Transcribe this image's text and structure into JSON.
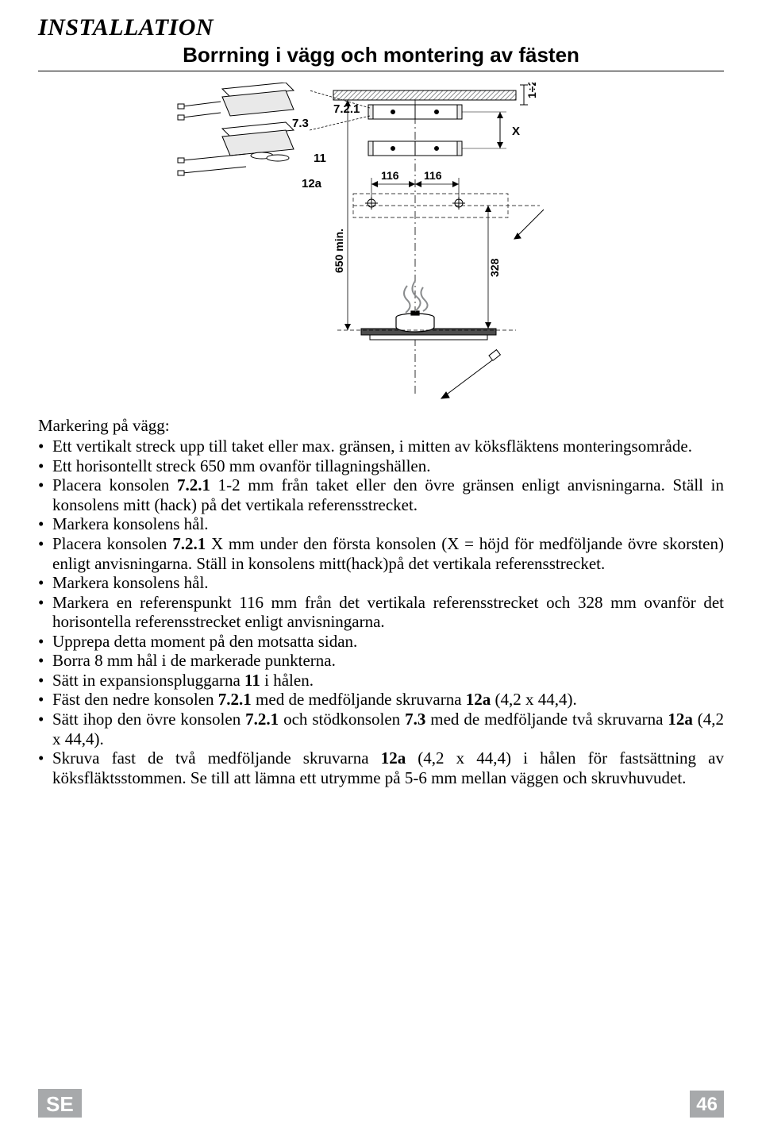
{
  "header": {
    "title": "INSTALLATION",
    "subtitle": "Borrning i vägg och montering av fästen"
  },
  "diagram": {
    "labels": {
      "l73": "7.3",
      "l721": "7.2.1",
      "l11": "11",
      "l12a": "12a",
      "l116a": "116",
      "l116b": "116",
      "topdim": "1÷2",
      "xdim": "X",
      "v328": "328",
      "v650": "650 min."
    },
    "colors": {
      "stroke": "#000000",
      "hatch": "#8a8c8e",
      "fill_light": "#e9e9e9",
      "dash": "#000000"
    }
  },
  "body": {
    "lead": "Markering på vägg:",
    "bullets": [
      "Ett vertikalt streck upp till taket eller max. gränsen, i mitten av köksfläktens monteringsområde.",
      "Ett horisontellt streck 650 mm ovanför tillagningshällen.",
      "Placera konsolen <b>7.2.1</b> 1-2 mm från taket eller den övre gränsen enligt anvisningarna. Ställ in konsolens mitt (hack) på det vertikala referensstrecket.",
      "Markera konsolens hål.",
      "Placera konsolen <b>7.2.1</b> X mm under den första konsolen (X = höjd för medföljande övre skorsten) enligt anvisningarna. Ställ in konsolens mitt(hack)på det vertikala referensstrecket.",
      "Markera konsolens hål.",
      "Markera en referenspunkt 116 mm från det vertikala referensstrecket och 328 mm ovanför det horisontella referensstrecket enligt anvisningarna.",
      "Upprepa detta moment på den motsatta sidan.",
      "Borra 8 mm hål i de markerade punkterna.",
      "Sätt in expansionspluggarna <b>11</b> i hålen.",
      "Fäst den nedre konsolen <b>7.2.1</b> med de medföljande skruvarna <b>12a</b> (4,2 x 44,4).",
      "Sätt ihop den övre konsolen <b>7.2.1</b> och stödkonsolen <b>7.3</b> med de medföljande två skruvarna <b>12a</b> (4,2 x 44,4).",
      "Skruva fast de två medföljande skruvarna <b>12a</b> (4,2 x 44,4) i hålen för fastsättning av köksfläktsstommen. Se till att lämna ett utrymme på 5-6 mm mellan väggen och skruvhuvudet."
    ]
  },
  "footer": {
    "lang": "SE",
    "page": "46"
  }
}
